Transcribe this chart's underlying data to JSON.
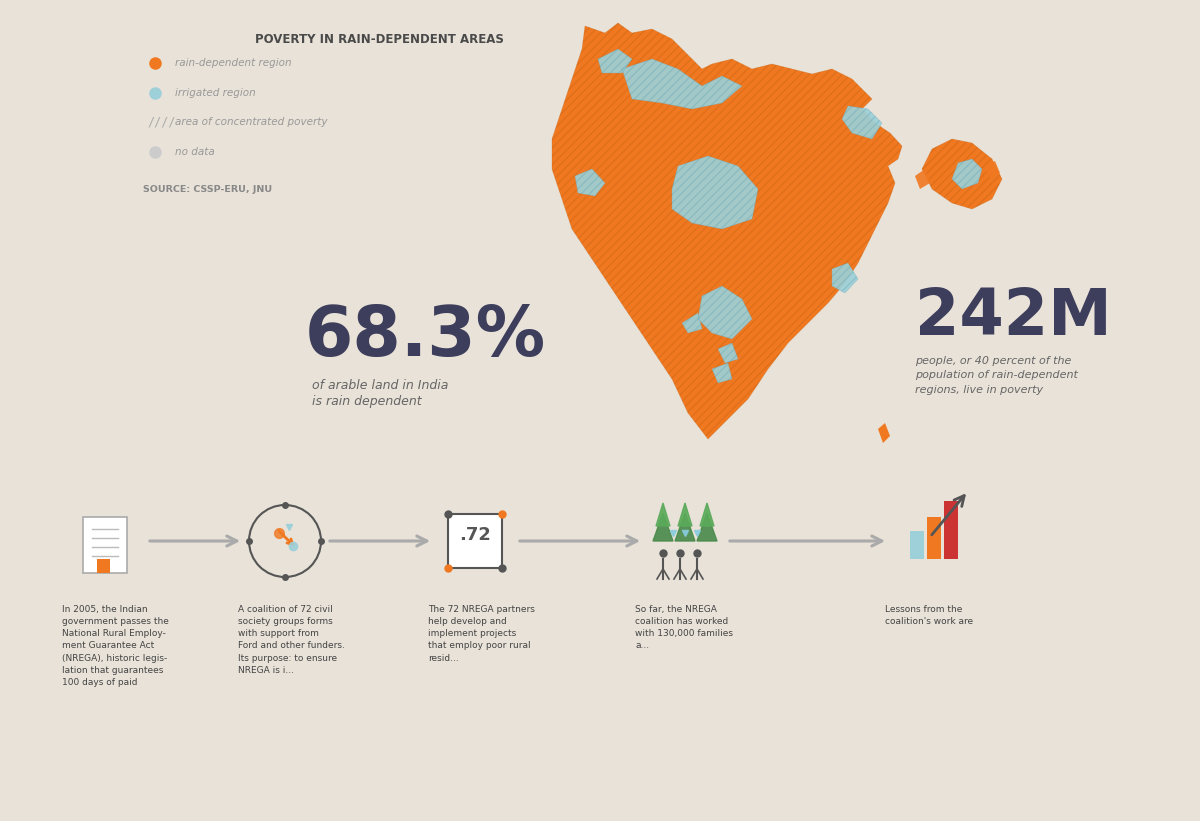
{
  "bg_color": "#e8e2d8",
  "title": "POVERTY IN RAIN-DEPENDENT AREAS",
  "title_color": "#4a4a4a",
  "source_text": "SOURCE: CSSP-ERU, JNU",
  "stat1_value": "68.3%",
  "stat1_desc1": "of arable land in India",
  "stat1_desc2": "is rain dependent",
  "stat2_value": "242M",
  "stat2_desc": "people, or 40 percent of the\npopulation of rain-dependent\nregions, live in poverty",
  "stat_color": "#3d3d5c",
  "desc_color": "#666666",
  "orange_color": "#f07820",
  "blue_color": "#9dd0d8",
  "gray_color": "#cccccc",
  "arrow_color": "#aaaaaa",
  "text_color": "#444444",
  "legend_text_color": "#999999",
  "bottom_texts": [
    "In 2005, the Indian\ngovernment passes the\nNational Rural Employ-\nment Guarantee Act\n(NREGA), historic legis-\nlation that guarantees\n100 days of paid",
    "A coalition of 72 civil\nsociety groups forms\nwith support from\nFord and other funders.\nIts purpose: to ensure\nNREGA is i...",
    "The 72 NREGA partners\nhelp develop and\nimplement projects\nthat employ poor rural\nresid...",
    "So far, the NREGA\ncoalition has worked\nwith 130,000 families\na...",
    "Lessons from the\ncoalition's work are"
  ]
}
